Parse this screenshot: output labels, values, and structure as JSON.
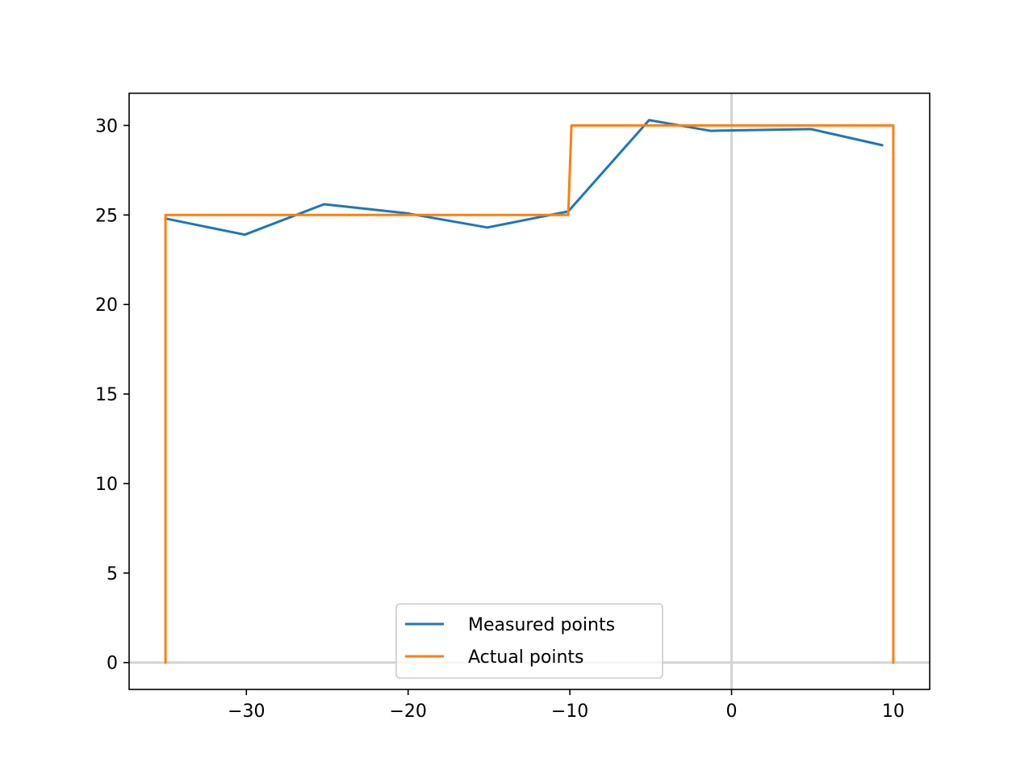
{
  "chart_data": {
    "type": "line",
    "title": "",
    "xlabel": "",
    "ylabel": "",
    "xlim": [
      -37.25,
      12.25
    ],
    "ylim": [
      -1.5,
      31.8
    ],
    "x_ticks": [
      -30,
      -20,
      -10,
      0,
      10
    ],
    "x_tick_labels": [
      "−30",
      "−20",
      "−10",
      "0",
      "10"
    ],
    "y_ticks": [
      0,
      5,
      10,
      15,
      20,
      25,
      30
    ],
    "y_tick_labels": [
      "0",
      "5",
      "10",
      "15",
      "20",
      "25",
      "30"
    ],
    "reference_lines": [
      {
        "orientation": "horizontal",
        "value": 0,
        "color": "#d3d3d3"
      },
      {
        "orientation": "vertical",
        "value": 0,
        "color": "#d3d3d3"
      }
    ],
    "legend": {
      "position": "lower center"
    },
    "grid": false,
    "series": [
      {
        "name": "Measured points",
        "color": "#1f77b4",
        "x": [
          -35,
          -30.1,
          -25.2,
          -20.1,
          -15.1,
          -10.1,
          -5.1,
          -1.3,
          4.9,
          9.3
        ],
        "y": [
          24.8,
          23.9,
          25.6,
          25.1,
          24.3,
          25.2,
          30.3,
          29.7,
          29.8,
          28.9
        ]
      },
      {
        "name": "Actual points",
        "color": "#ff7f0e",
        "x": [
          -35,
          -35,
          -10.1,
          -9.9,
          10,
          10
        ],
        "y": [
          0,
          25,
          25,
          30,
          30,
          0
        ]
      }
    ]
  }
}
